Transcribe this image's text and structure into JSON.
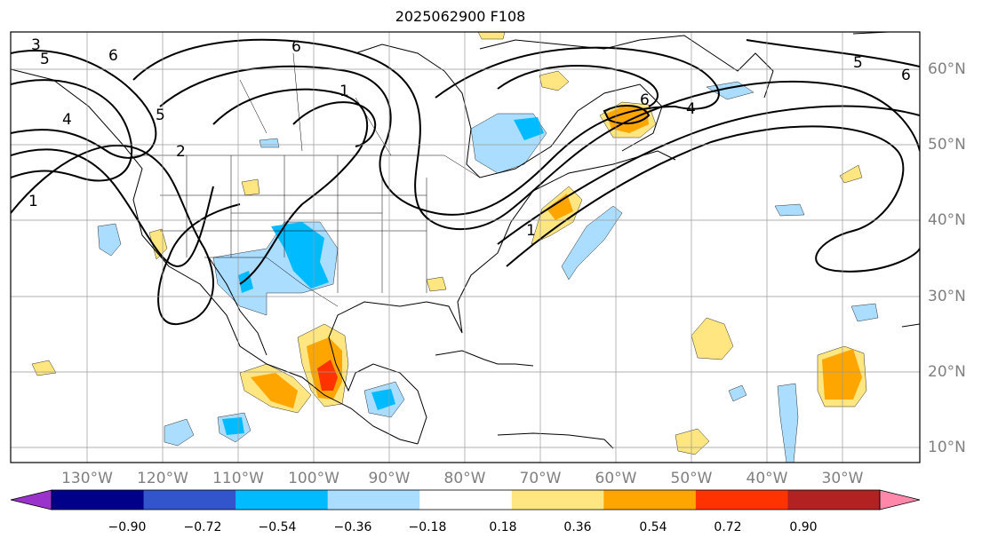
{
  "title": "2025062900 F108",
  "longitude_labels": [
    "130°W",
    "120°W",
    "110°W",
    "100°W",
    "90°W",
    "80°W",
    "70°W",
    "60°W",
    "50°W",
    "40°W",
    "30°W"
  ],
  "latitude_labels": [
    "60°N",
    "50°N",
    "40°N",
    "30°N",
    "20°N",
    "10°N"
  ],
  "contour_labels": [
    "3",
    "5",
    "6",
    "6",
    "1",
    "4",
    "5",
    "2",
    "1",
    "6",
    "4",
    "5",
    "6",
    "1"
  ],
  "colorbar": {
    "ticks": [
      "−0.90",
      "−0.72",
      "−0.54",
      "−0.36",
      "−0.18",
      "0.18",
      "0.36",
      "0.54",
      "0.72",
      "0.90"
    ],
    "colors": [
      "#9933cc",
      "#000088",
      "#3355cc",
      "#00bbff",
      "#aaddff",
      "#ffffff",
      "#ffe680",
      "#ffa500",
      "#ff3300",
      "#b22222",
      "#ff88aa"
    ]
  },
  "shading_colors": {
    "light_blue": "#aaddff",
    "blue": "#00bbff",
    "yellow": "#ffe680",
    "orange": "#ffa500",
    "red": "#ff3300"
  }
}
